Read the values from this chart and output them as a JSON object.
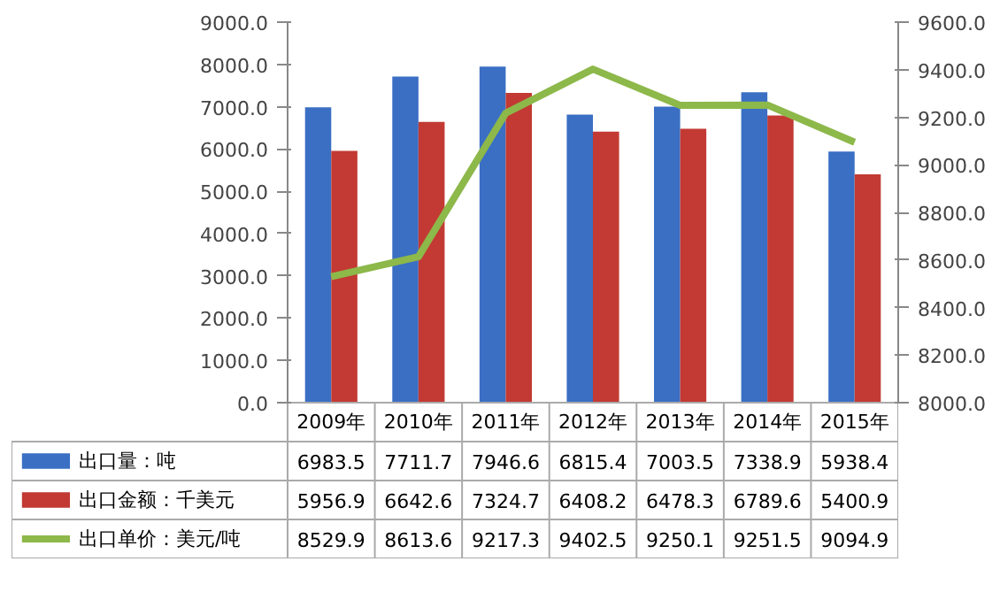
{
  "chart_data": {
    "type": "bar",
    "categories": [
      "2009年",
      "2010年",
      "2011年",
      "2012年",
      "2013年",
      "2014年",
      "2015年"
    ],
    "series": [
      {
        "name": "出口量：吨",
        "color": "#3a6fc4",
        "values": [
          6983.5,
          7711.7,
          7946.6,
          6815.4,
          7003.5,
          7338.9,
          5938.4
        ]
      },
      {
        "name": "出口金额：千美元",
        "color": "#c23a33",
        "values": [
          5956.9,
          6642.6,
          7324.7,
          6408.2,
          6478.3,
          6789.6,
          5400.9
        ]
      },
      {
        "name": "出口单价：美元/吨",
        "color": "#8db84a",
        "type": "line",
        "axis": "y2",
        "marker": "none",
        "values": [
          8529.9,
          8613.6,
          9217.3,
          9402.5,
          9250.1,
          9251.5,
          9094.9
        ]
      }
    ],
    "ylim": [
      0,
      9000
    ],
    "yticks": [
      {
        "value": 0,
        "label": "0.0"
      },
      {
        "value": 1000,
        "label": "1000.0"
      },
      {
        "value": 2000,
        "label": "2000.0"
      },
      {
        "value": 3000,
        "label": "3000.0"
      },
      {
        "value": 4000,
        "label": "4000.0"
      },
      {
        "value": 5000,
        "label": "5000.0"
      },
      {
        "value": 6000,
        "label": "6000.0"
      },
      {
        "value": 7000,
        "label": "7000.0"
      },
      {
        "value": 8000,
        "label": "8000.0"
      },
      {
        "value": 9000,
        "label": "9000.0"
      }
    ],
    "y2lim": [
      8000,
      9600
    ],
    "y2ticks": [
      {
        "value": 8000,
        "label": "8000.0"
      },
      {
        "value": 8200,
        "label": "8200.0"
      },
      {
        "value": 8400,
        "label": "8400.0"
      },
      {
        "value": 8600,
        "label": "8600.0"
      },
      {
        "value": 8800,
        "label": "8800.0"
      },
      {
        "value": 9000,
        "label": "9000.0"
      },
      {
        "value": 9200,
        "label": "9200.0"
      },
      {
        "value": 9400,
        "label": "9400.0"
      },
      {
        "value": 9600,
        "label": "9600.0"
      }
    ],
    "data_labels": true,
    "legend": "bottom"
  }
}
